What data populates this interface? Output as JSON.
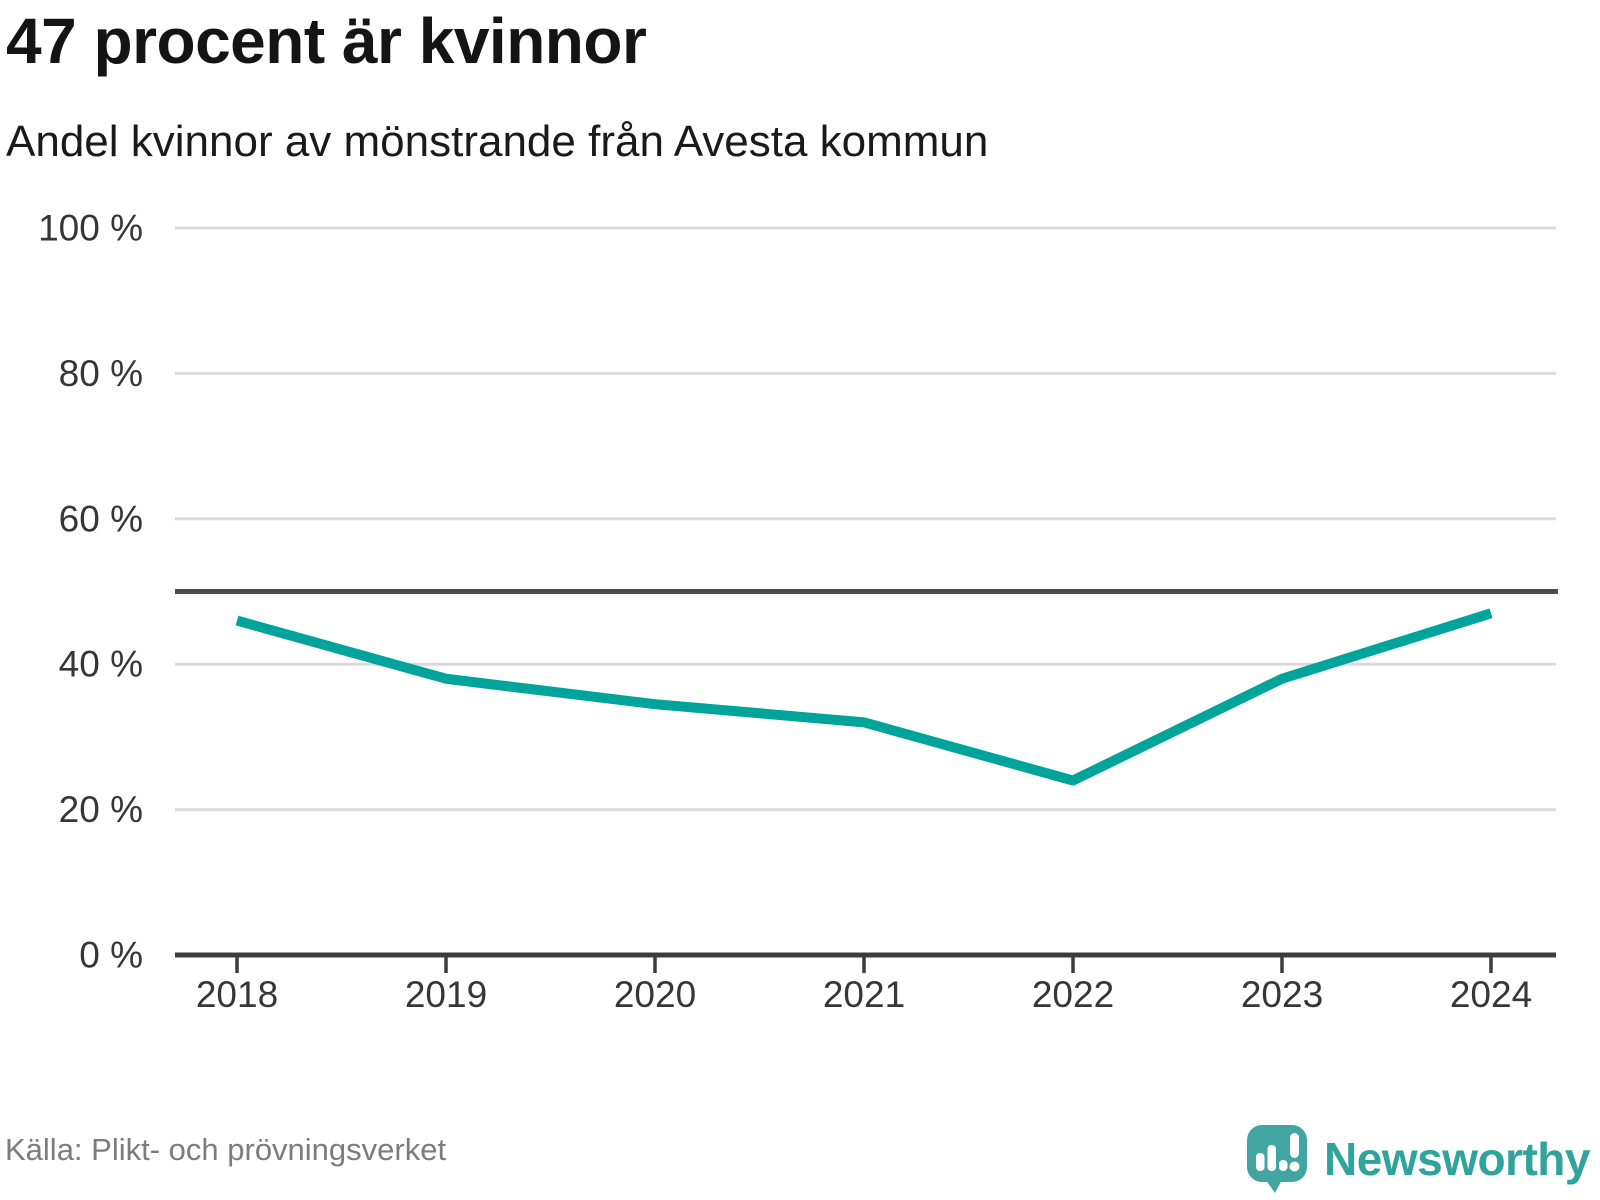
{
  "header": {
    "title": "47 procent är kvinnor",
    "subtitle": "Andel kvinnor av mönstrande från Avesta kommun"
  },
  "footer": {
    "source": "Källa: Plikt- och prövningsverket",
    "brand": "Newsworthy"
  },
  "colors": {
    "line": "#00A49B",
    "grid": "#DBDBDB",
    "axis": "#3C3C3C",
    "ref": "#4D4D4D",
    "tick": "#363636",
    "title": "#141414",
    "subtitle": "#1A1A1A",
    "source": "#7C7C7C",
    "brand_icon": "#43A5A1",
    "brand_text": "#2FA39C",
    "background": "#FFFFFF"
  },
  "chart_data": {
    "type": "line",
    "title": "47 procent är kvinnor",
    "subtitle": "Andel kvinnor av mönstrande från Avesta kommun",
    "categories": [
      "2018",
      "2019",
      "2020",
      "2021",
      "2022",
      "2023",
      "2024"
    ],
    "series": [
      {
        "name": "Andel kvinnor av mönstrande",
        "values": [
          46,
          38,
          34.5,
          32,
          24,
          38,
          47
        ]
      }
    ],
    "unit": "%",
    "ylim": [
      0,
      100
    ],
    "yticks": [
      {
        "value": 0,
        "label": "0 %"
      },
      {
        "value": 20,
        "label": "20 %"
      },
      {
        "value": 40,
        "label": "40 %"
      },
      {
        "value": 60,
        "label": "60 %"
      },
      {
        "value": 80,
        "label": "80 %"
      },
      {
        "value": 100,
        "label": "100 %"
      }
    ],
    "reference_line": 50,
    "grid": "horizontal",
    "legend": "none"
  }
}
